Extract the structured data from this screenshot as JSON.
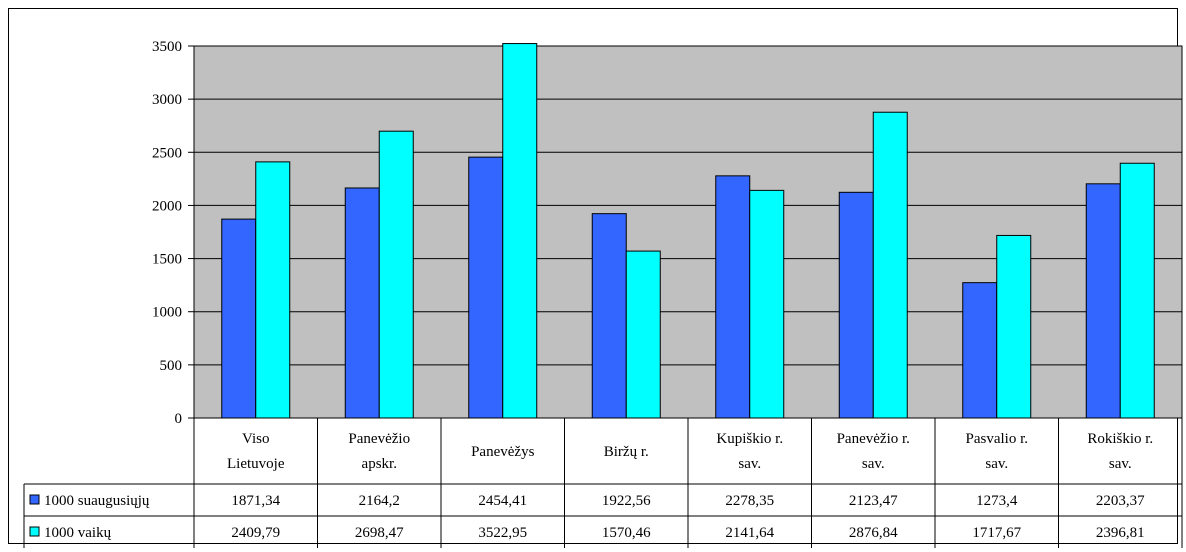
{
  "chart_data": {
    "type": "bar",
    "title": "",
    "xlabel": "",
    "ylabel": "",
    "ylim": [
      0,
      3500
    ],
    "yticks": [
      0,
      500,
      1000,
      1500,
      2000,
      2500,
      3000,
      3500
    ],
    "grid": true,
    "legend_position": "data-table-left",
    "categories": [
      [
        "Viso",
        "Lietuvoje"
      ],
      [
        "Panevėžio",
        "apskr."
      ],
      [
        "Panevėžys"
      ],
      [
        "Biržų r."
      ],
      [
        "Kupiškio r.",
        "sav."
      ],
      [
        "Panevėžio r.",
        "sav."
      ],
      [
        "Pasvalio r.",
        "sav."
      ],
      [
        "Rokiškio r.",
        "sav."
      ]
    ],
    "series": [
      {
        "name": "1000 suaugusiųjų",
        "color": "#3366FF",
        "values": [
          1871.34,
          2164.2,
          2454.41,
          1922.56,
          2278.35,
          2123.47,
          1273.4,
          2203.37
        ],
        "labels": [
          "1871,34",
          "2164,2",
          "2454,41",
          "1922,56",
          "2278,35",
          "2123,47",
          "1273,4",
          "2203,37"
        ]
      },
      {
        "name": "1000 vaikų",
        "color": "#00FFFF",
        "values": [
          2409.79,
          2698.47,
          3522.95,
          1570.46,
          2141.64,
          2876.84,
          1717.67,
          2396.81
        ],
        "labels": [
          "2409,79",
          "2698,47",
          "3522,95",
          "1570,46",
          "2141,64",
          "2876,84",
          "1717,67",
          "2396,81"
        ]
      }
    ],
    "colors": {
      "plot_background": "#C0C0C0",
      "gridline": "#000000"
    }
  }
}
